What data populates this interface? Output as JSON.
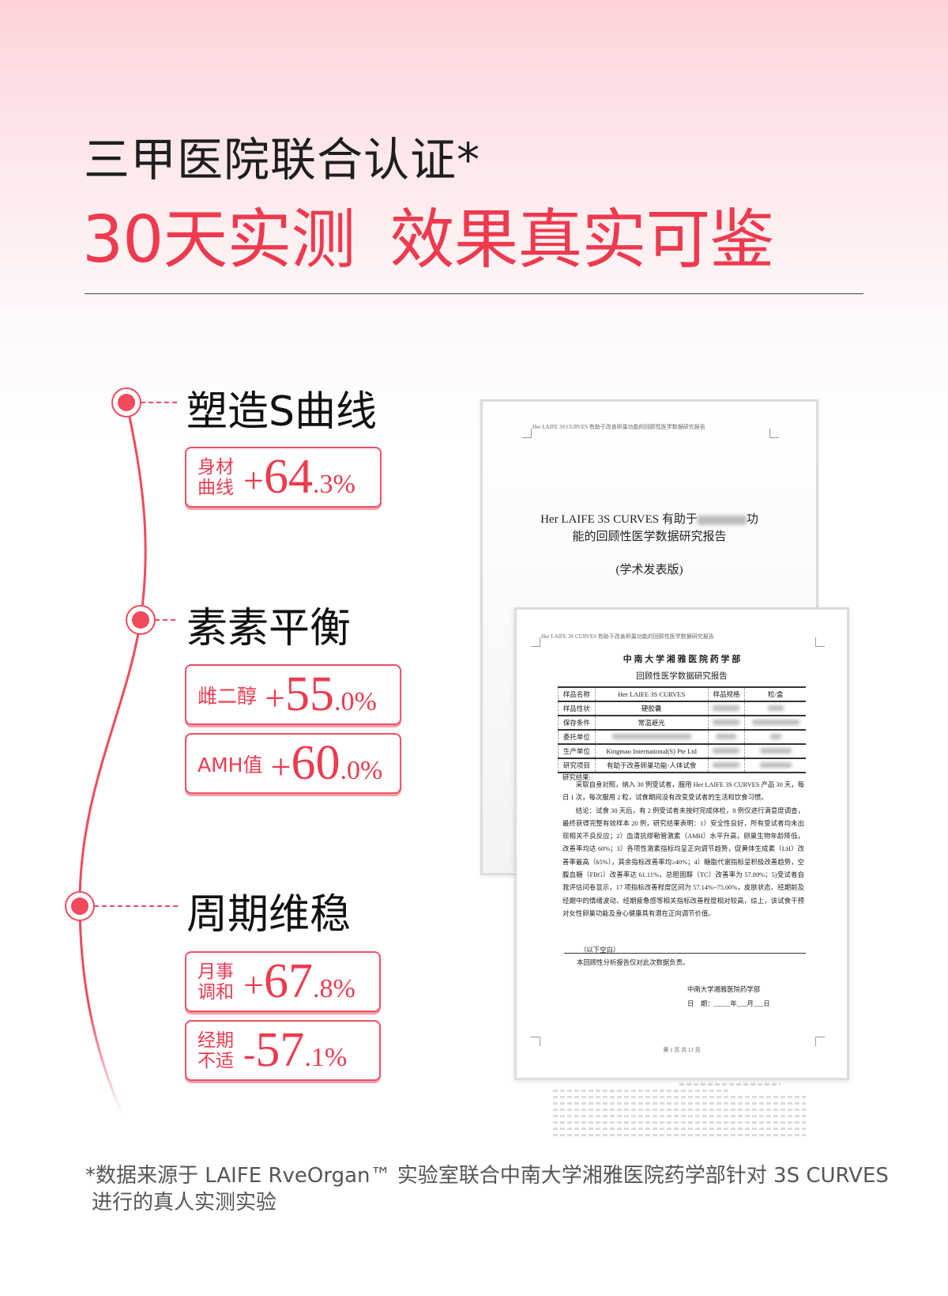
{
  "header": {
    "title_line1": "三甲医院联合认证*",
    "title_line2_a": "30天实测",
    "title_line2_b": "效果真实可鉴"
  },
  "colors": {
    "accent": "#ee3a4e",
    "text": "#1e1e1e",
    "background_top": "#fdd3d9"
  },
  "sections": [
    {
      "heading": "塑造S曲线",
      "stats": [
        {
          "label_line1": "身材",
          "label_line2": "曲线",
          "sign": "+",
          "int": "64",
          "dec": ".3%"
        }
      ]
    },
    {
      "heading": "素素平衡",
      "stats": [
        {
          "label": "雌二醇",
          "sign": "+",
          "int": "55",
          "dec": ".0%"
        },
        {
          "label": "AMH值",
          "sign": "+",
          "int": "60",
          "dec": ".0%"
        }
      ]
    },
    {
      "heading": "周期维稳",
      "stats": [
        {
          "label_line1": "月事",
          "label_line2": "调和",
          "sign": "+",
          "int": "67",
          "dec": ".8%"
        },
        {
          "label_line1": "经期",
          "label_line2": "不适",
          "sign": "-",
          "int": "57",
          "dec": ".1%"
        }
      ]
    }
  ],
  "doc_back": {
    "running_header": "Her LAIFE 3S CURVES 有助于改善卵巢功能的回顾性医学数据研究报告",
    "title_a": "Her LAIFE 3S CURVES 有助于",
    "title_b": "功",
    "title_line2": "能的回顾性医学数据研究报告",
    "edition": "(学术发表版)"
  },
  "doc_front": {
    "running_header": "Her LAIFE 3S CURVES 有助于改善卵巢功能的回顾性医学数据研究报告",
    "org": "中 南 大 学 湘 雅 医 院 药 学 部",
    "subtitle": "回顾性医学数据研究报告",
    "table": [
      {
        "k1": "样品名称",
        "v1": "Her LAIFE 3S CURVES",
        "k2": "样品规格",
        "v2": "粒/盒"
      },
      {
        "k1": "样品性状",
        "v1": "硬胶囊"
      },
      {
        "k1": "保存条件",
        "v1": "常温避光"
      },
      {
        "k1": "委托单位"
      },
      {
        "k1": "生产单位",
        "v1": "Kingmao International(S) Pte Ltd"
      },
      {
        "k1": "研究项目",
        "v1": "有助于改善卵巢功能-人体试食"
      }
    ],
    "results_label": "研究结果:",
    "para1": "采取自身对照，纳入 30 例受试者，服用 Her LAIFE 3S CURVES 产品 30 天，每日 1 次，每次服用 2 粒，试食期间没有改变受试者的生活和饮食习惯。",
    "para2": "结论：试食 30 天后，有 2 例受试者未按时完成体检，8 例仅进行满意度调查，最终获得完整有效样本 20 例，研究结果表明：1）安全性良好，所有受试者均未出现相关不良反应；2）血清抗缪勒管激素（AMH）水平升高，卵巢生物年龄降低，改善率均达 60%；3）各项性激素指标均呈正向调节趋势，促黄体生成素（LH）改善率最高（65%），其余指标改善率均≥40%；4）糖脂代谢指标呈积极改善趋势，空腹血糖（FBG）改善率达 61.11%，总胆固醇（TC）改善率为 57.89%；5)受试者自我评估问卷显示，17 项指标改善程度区间为 57.14%~75.00%，皮肤状态、经期前及经期中的情绪波动、经期疲惫感等相关指标改善程度相对较高，综上，该试食干预对女性卵巢功能及身心健康具有潜在正向调节价值。",
    "blank_note": "（以下空白）",
    "disclaimer": "本回顾性分析报告仅对此次数据负责。",
    "signature": "中南大学湘雅医院药学部",
    "date": "日　期：_____年___月___日",
    "page": "第 1 页 共 12 页"
  },
  "footer": {
    "line1": "*数据来源于 LAIFE RveOrgan™ 实验室联合中南大学湘雅医院药学部针对 3S CURVES",
    "line2": "进行的真人实测实验"
  }
}
